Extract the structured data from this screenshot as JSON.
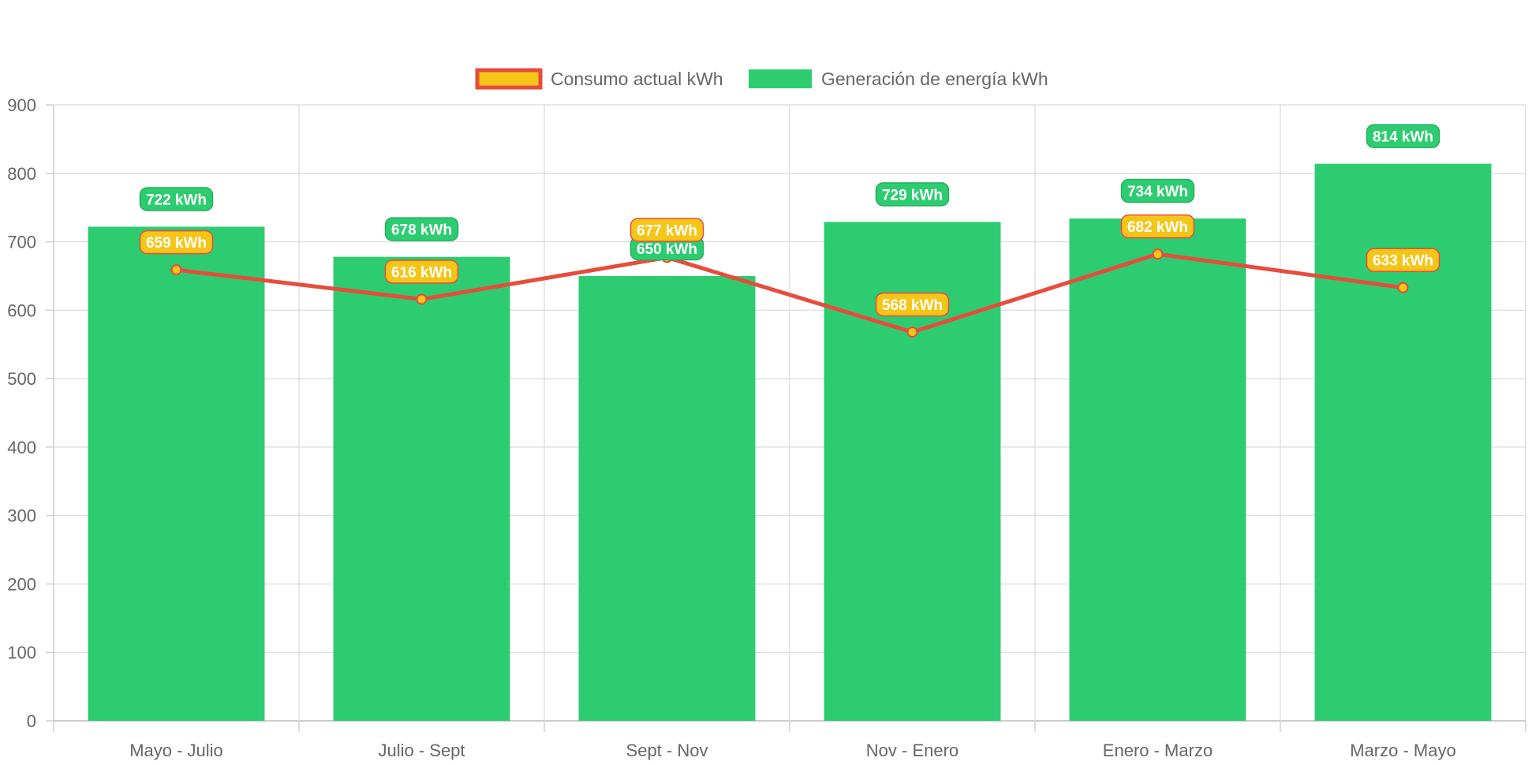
{
  "chart_data": {
    "type": "bar",
    "categories": [
      "Mayo - Julio",
      "Julio - Sept",
      "Sept - Nov",
      "Nov - Enero",
      "Enero - Marzo",
      "Marzo - Mayo"
    ],
    "ylim": [
      0,
      900
    ],
    "yticks": [
      0,
      100,
      200,
      300,
      400,
      500,
      600,
      700,
      800,
      900
    ],
    "grid": true,
    "legend_position": "top",
    "series": [
      {
        "name": "Consumo actual kWh",
        "type": "line",
        "values": [
          659,
          616,
          677,
          568,
          682,
          633
        ],
        "labels": [
          "659 kWh",
          "616 kWh",
          "677 kWh",
          "568 kWh",
          "682 kWh",
          "633 kWh"
        ],
        "color": "#e74c3c",
        "fill_color": "#f5c518"
      },
      {
        "name": "Generación de energía kWh",
        "type": "bar",
        "values": [
          722,
          678,
          650,
          729,
          734,
          814
        ],
        "labels": [
          "722 kWh",
          "678 kWh",
          "650 kWh",
          "729 kWh",
          "734 kWh",
          "814 kWh"
        ],
        "color": "#2ecc71",
        "border_color": "#27ae60"
      }
    ]
  }
}
